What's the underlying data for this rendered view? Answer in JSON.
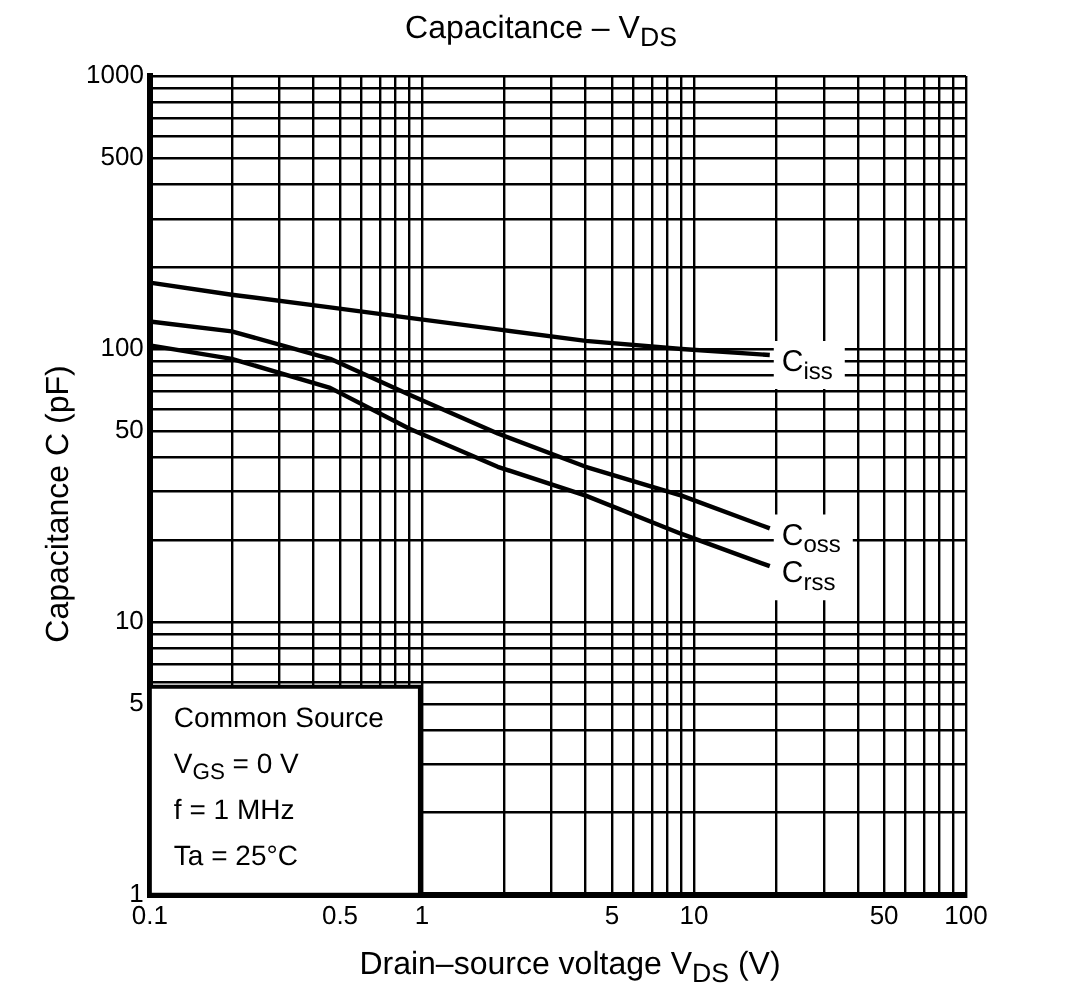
{
  "chart_data": {
    "type": "line",
    "title": "Capacitance – V$_{DS}$",
    "xlabel": "Drain–source voltage   V$_{DS}$   (V)",
    "ylabel": "Capacitance   C   (pF)",
    "log": "xy",
    "grid": true,
    "legend": false,
    "marker": "none",
    "line_style": "solid",
    "xlim": [
      0.1,
      100
    ],
    "ylim": [
      1,
      1000
    ],
    "xticks": [
      0.1,
      {
        "value": 0.2,
        "label": null
      },
      {
        "value": 0.3,
        "label": null
      },
      {
        "value": 0.4,
        "label": null
      },
      0.5,
      {
        "value": 0.6,
        "label": null
      },
      {
        "value": 0.7,
        "label": null
      },
      {
        "value": 0.8,
        "label": null
      },
      {
        "value": 0.9,
        "label": null
      },
      1,
      {
        "value": 2,
        "label": null
      },
      {
        "value": 3,
        "label": null
      },
      {
        "value": 4,
        "label": null
      },
      5,
      {
        "value": 6,
        "label": null
      },
      {
        "value": 7,
        "label": null
      },
      {
        "value": 8,
        "label": null
      },
      {
        "value": 9,
        "label": null
      },
      10,
      {
        "value": 20,
        "label": null
      },
      {
        "value": 30,
        "label": null
      },
      {
        "value": 40,
        "label": null
      },
      50,
      {
        "value": 60,
        "label": null
      },
      {
        "value": 70,
        "label": null
      },
      {
        "value": 80,
        "label": null
      },
      {
        "value": 90,
        "label": null
      },
      100
    ],
    "yticks": [
      1,
      {
        "value": 2,
        "label": null
      },
      {
        "value": 3,
        "label": null
      },
      {
        "value": 4,
        "label": null
      },
      5,
      {
        "value": 6,
        "label": null
      },
      {
        "value": 7,
        "label": null
      },
      {
        "value": 8,
        "label": null
      },
      {
        "value": 9,
        "label": null
      },
      10,
      {
        "value": 20,
        "label": null
      },
      {
        "value": 30,
        "label": null
      },
      {
        "value": 40,
        "label": null
      },
      50,
      {
        "value": 60,
        "label": null
      },
      {
        "value": 70,
        "label": null
      },
      {
        "value": 80,
        "label": null
      },
      {
        "value": 90,
        "label": null
      },
      100,
      {
        "value": 200,
        "label": null
      },
      {
        "value": 300,
        "label": null
      },
      {
        "value": 400,
        "label": null
      },
      500,
      {
        "value": 600,
        "label": null
      },
      {
        "value": 700,
        "label": null
      },
      {
        "value": 800,
        "label": null
      },
      {
        "value": 900,
        "label": null
      },
      1000
    ],
    "x": [
      0.1,
      0.2,
      0.46,
      0.9,
      1.9,
      4,
      9,
      19
    ],
    "series": [
      {
        "name": "C$_{iss}$",
        "color": "#000000",
        "values": [
          175,
          158,
          142,
          130,
          118,
          107,
          100,
          95
        ]
      },
      {
        "name": "C$_{oss}$",
        "color": "#000000",
        "values": [
          126,
          116,
          92,
          68,
          49,
          37,
          29,
          22
        ]
      },
      {
        "name": "C$_{rss}$",
        "color": "#000000",
        "values": [
          103,
          92,
          72,
          51,
          37,
          29,
          21,
          16
        ]
      }
    ],
    "annotations": [
      "Common Source",
      "V$_{GS}$ = 0 V",
      "f = 1 MHz",
      "Ta = 25°C"
    ]
  }
}
